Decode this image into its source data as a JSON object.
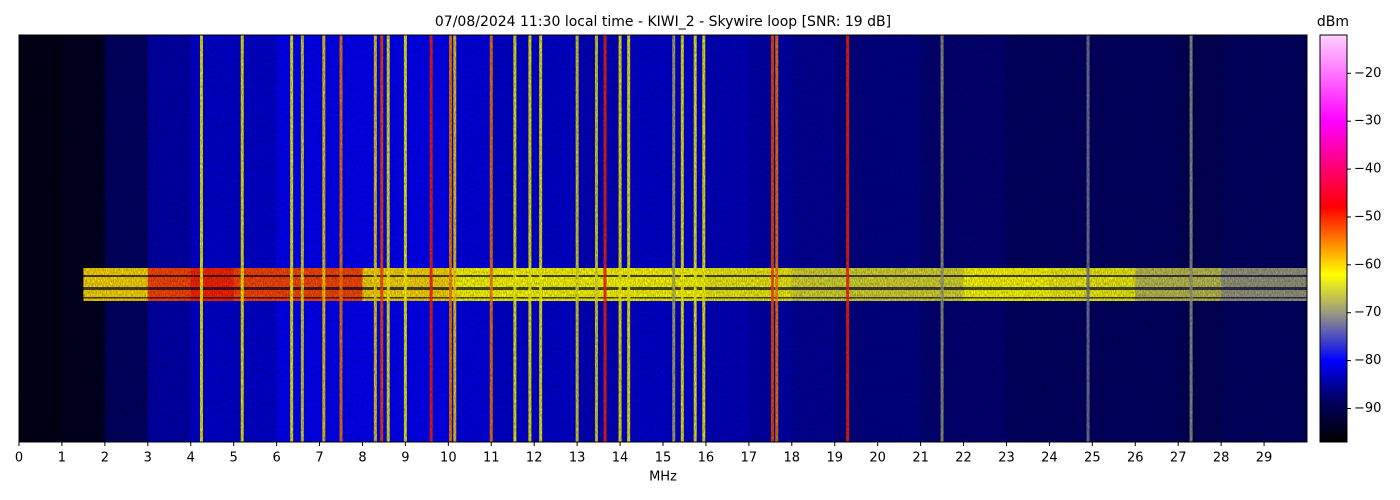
{
  "chart_data": {
    "type": "heatmap",
    "title": "07/08/2024 11:30 local time - KIWI_2 - Skywire loop [SNR: 19 dB]",
    "xlabel": "MHz",
    "colorbar_label": "dBm",
    "xlim": [
      0,
      30
    ],
    "xticks": [
      0,
      1,
      2,
      3,
      4,
      5,
      6,
      7,
      8,
      9,
      10,
      11,
      12,
      13,
      14,
      15,
      16,
      17,
      18,
      19,
      20,
      21,
      22,
      23,
      24,
      25,
      26,
      27,
      28,
      29
    ],
    "zlim": [
      -97,
      -12
    ],
    "zticks": [
      {
        "value": -90,
        "label": "−90"
      },
      {
        "value": -80,
        "label": "−80"
      },
      {
        "value": -70,
        "label": "−70"
      },
      {
        "value": -60,
        "label": "−60"
      },
      {
        "value": -50,
        "label": "−50"
      },
      {
        "value": -40,
        "label": "−40"
      },
      {
        "value": -30,
        "label": "−30"
      },
      {
        "value": -20,
        "label": "−20"
      }
    ],
    "colormap": [
      {
        "value": -97,
        "color": "#000000"
      },
      {
        "value": -88,
        "color": "#000066"
      },
      {
        "value": -80,
        "color": "#0000ff"
      },
      {
        "value": -70,
        "color": "#9a9a80"
      },
      {
        "value": -62,
        "color": "#ffff00"
      },
      {
        "value": -48,
        "color": "#ff0000"
      },
      {
        "value": -30,
        "color": "#ff00ff"
      },
      {
        "value": -12,
        "color": "#ffd0ff"
      }
    ],
    "noise": {
      "bins": [
        0,
        1,
        2,
        3,
        4,
        5,
        6,
        7,
        8,
        9,
        10,
        11,
        12,
        13,
        14,
        15,
        16,
        17,
        18,
        19,
        20,
        21,
        22,
        23,
        24,
        25,
        26,
        27,
        28,
        29,
        30
      ],
      "values": [
        -95,
        -94,
        -88,
        -84,
        -82,
        -82,
        -80,
        -80,
        -80,
        -80,
        -81,
        -82,
        -82,
        -83,
        -82,
        -82,
        -83,
        -84,
        -85,
        -86,
        -86,
        -87,
        -87,
        -88,
        -88,
        -88,
        -88,
        -89,
        -88,
        -88
      ]
    },
    "carriers": {
      "x": [
        4.25,
        5.2,
        6.35,
        6.6,
        7.1,
        7.5,
        8.3,
        8.45,
        8.6,
        9.0,
        9.6,
        10.05,
        10.15,
        11.0,
        11.55,
        11.9,
        12.15,
        13.0,
        13.45,
        13.65,
        14.0,
        14.2,
        15.25,
        15.45,
        15.75,
        15.95,
        17.55,
        17.65,
        19.3,
        21.5,
        24.9,
        27.3
      ],
      "values": [
        -62,
        -62,
        -62,
        -64,
        -60,
        -55,
        -60,
        -52,
        -62,
        -62,
        -50,
        -55,
        -60,
        -55,
        -62,
        -62,
        -62,
        -64,
        -64,
        -50,
        -62,
        -62,
        -68,
        -62,
        -62,
        -62,
        -52,
        -55,
        -50,
        -70,
        -72,
        -70
      ]
    },
    "band": {
      "bins": [
        1.5,
        3,
        4,
        5,
        6,
        7,
        8,
        10,
        12,
        14,
        16,
        18,
        20,
        22,
        24,
        26,
        28,
        30
      ],
      "values": [
        -60,
        -52,
        -50,
        -52,
        -52,
        -52,
        -60,
        -62,
        -62,
        -62,
        -63,
        -65,
        -65,
        -62,
        -63,
        -67,
        -70
      ]
    }
  }
}
